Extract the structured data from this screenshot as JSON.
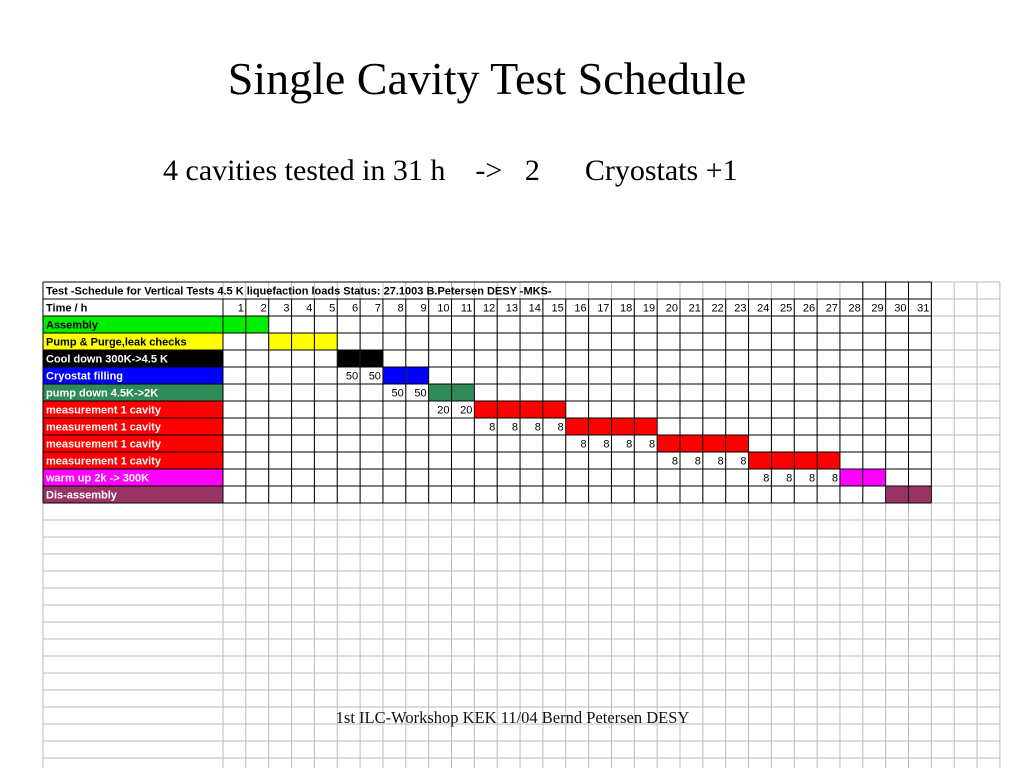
{
  "slide": {
    "title": "Single Cavity Test Schedule",
    "subtitle": "4 cavities tested in 31 h    ->   2      Cryostats +1",
    "footer": "1st ILC-Workshop KEK 11/04  Bernd Petersen DESY"
  },
  "table": {
    "header": "Test -Schedule for Vertical Tests   4.5 K liquefaction loads Status: 27.1003 B.Petersen  DESY -MKS-",
    "time_label": "Time / h",
    "hours": [
      "1",
      "2",
      "3",
      "4",
      "5",
      "6",
      "7",
      "8",
      "9",
      "10",
      "11",
      "12",
      "13",
      "14",
      "15",
      "16",
      "17",
      "18",
      "19",
      "20",
      "21",
      "22",
      "23",
      "24",
      "25",
      "26",
      "27",
      "28",
      "29",
      "30",
      "31"
    ],
    "rows": [
      {
        "label": "Assembly",
        "label_bg": "#00ee00",
        "label_color": "#000000",
        "start": 1,
        "end": 2,
        "color": "#00ee00",
        "values": {}
      },
      {
        "label": "Pump & Purge,leak checks",
        "label_bg": "#ffff00",
        "label_color": "#000000",
        "start": 3,
        "end": 5,
        "color": "#ffff00",
        "values": {}
      },
      {
        "label": "Cool down 300K->4.5 K",
        "label_bg": "#000000",
        "label_color": "#ffffff",
        "start": 6,
        "end": 7,
        "color": "#000000",
        "values": {}
      },
      {
        "label": "Cryostat filling",
        "label_bg": "#0000ff",
        "label_color": "#ffffff",
        "start": 8,
        "end": 9,
        "color": "#0000ff",
        "values": {
          "6": "50",
          "7": "50"
        }
      },
      {
        "label": "pump down 4.5K->2K",
        "label_bg": "#2e8b57",
        "label_color": "#ffffff",
        "start": 10,
        "end": 11,
        "color": "#2e8b57",
        "values": {
          "8": "50",
          "9": "50"
        }
      },
      {
        "label": "measurement 1 cavity",
        "label_bg": "#ff0000",
        "label_color": "#ffffff",
        "start": 12,
        "end": 15,
        "color": "#ff0000",
        "values": {
          "10": "20",
          "11": "20"
        }
      },
      {
        "label": "measurement 1 cavity",
        "label_bg": "#ff0000",
        "label_color": "#ffffff",
        "start": 16,
        "end": 19,
        "color": "#ff0000",
        "values": {
          "12": "8",
          "13": "8",
          "14": "8",
          "15": "8"
        }
      },
      {
        "label": "measurement 1 cavity",
        "label_bg": "#ff0000",
        "label_color": "#ffffff",
        "start": 20,
        "end": 23,
        "color": "#ff0000",
        "values": {
          "16": "8",
          "17": "8",
          "18": "8",
          "19": "8"
        }
      },
      {
        "label": "measurement 1 cavity",
        "label_bg": "#ff0000",
        "label_color": "#ffffff",
        "start": 24,
        "end": 27,
        "color": "#ff0000",
        "values": {
          "20": "8",
          "21": "8",
          "22": "8",
          "23": "8"
        }
      },
      {
        "label": "warm up 2k -> 300K",
        "label_bg": "#ff00ff",
        "label_color": "#ffffff",
        "start": 28,
        "end": 29,
        "color": "#ff00ff",
        "values": {
          "24": "8",
          "25": "8",
          "26": "8",
          "27": "8"
        }
      },
      {
        "label": "Dis-assembly",
        "label_bg": "#993366",
        "label_color": "#ffffff",
        "start": 30,
        "end": 31,
        "color": "#993366",
        "values": {}
      }
    ]
  }
}
